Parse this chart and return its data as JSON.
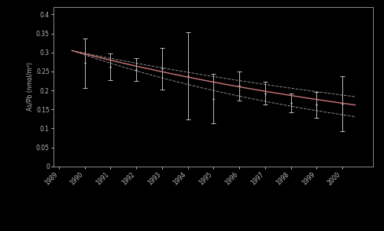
{
  "years": [
    1990,
    1991,
    1992,
    1993,
    1994,
    1995,
    1996,
    1997,
    1998,
    1999,
    2000
  ],
  "values": [
    0.272,
    0.263,
    0.255,
    0.258,
    0.238,
    0.178,
    0.212,
    0.192,
    0.167,
    0.162,
    0.165
  ],
  "errors_up": [
    0.065,
    0.035,
    0.03,
    0.055,
    0.115,
    0.065,
    0.038,
    0.03,
    0.025,
    0.035,
    0.072
  ],
  "errors_dn": [
    0.065,
    0.035,
    0.03,
    0.055,
    0.115,
    0.065,
    0.038,
    0.03,
    0.025,
    0.035,
    0.072
  ],
  "fit_color": "#cc7777",
  "data_color": "#bbbbbb",
  "background_color": "#000000",
  "text_color": "#bbbbbb",
  "spine_color": "#888888",
  "ylabel": "As/Pb (nmol/m³)",
  "ylim": [
    0,
    0.42
  ],
  "yticks": [
    0,
    0.05,
    0.1,
    0.15,
    0.2,
    0.25,
    0.3,
    0.35,
    0.4
  ],
  "xlim_left": 1988.8,
  "xlim_right": 2001.2,
  "xtick_start": 1989,
  "xtick_end": 2000,
  "half_life": 12,
  "half_life_err": 3,
  "A0": 0.305,
  "t0": 1989.5
}
